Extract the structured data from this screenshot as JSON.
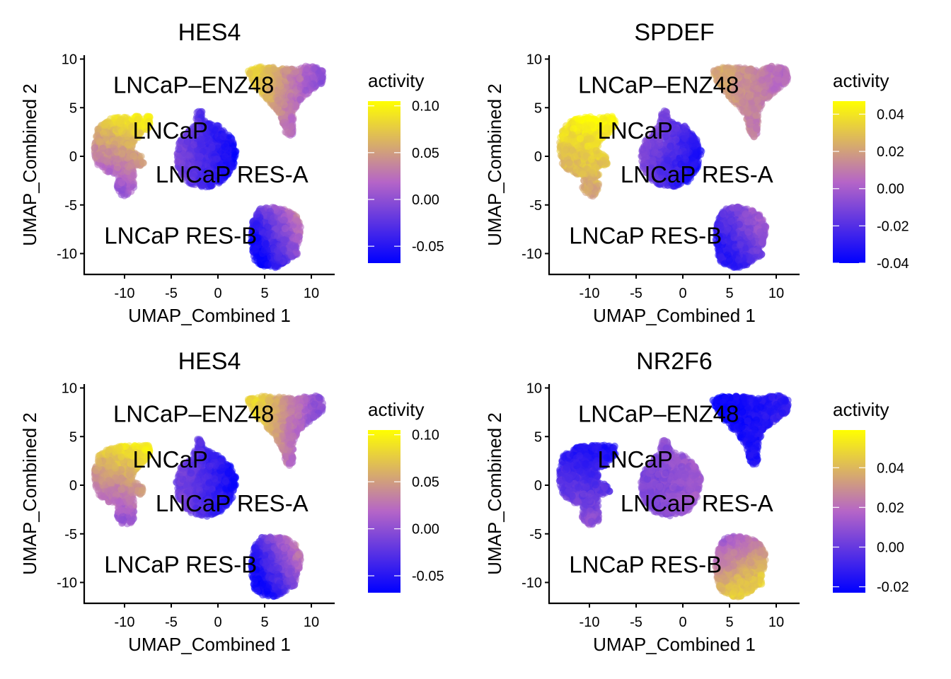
{
  "figure": {
    "layout": "2x2 grid of UMAP feature plots"
  },
  "chart_data": [
    {
      "type": "scatter",
      "title": "HES4",
      "xlabel": "UMAP_Combined 1",
      "ylabel": "UMAP_Combined 2",
      "xlim": [
        -14.5,
        12.5
      ],
      "ylim": [
        -12.3,
        10.2
      ],
      "xticks": [
        -10,
        -5,
        0,
        5,
        10
      ],
      "xtick_labels": [
        "-10",
        "-5",
        "0",
        "5",
        "10"
      ],
      "yticks": [
        10,
        5,
        0,
        -5,
        -10
      ],
      "ytick_labels": [
        "10",
        "5",
        "0",
        "-5",
        "-10"
      ],
      "grid": false,
      "legend": {
        "title": "activity",
        "placement": "right",
        "type": "colorbar",
        "range": [
          -0.068,
          0.105
        ],
        "ticks": [
          0.1,
          0.05,
          0.0,
          -0.05
        ],
        "tick_labels": [
          "0.10",
          "0.05",
          "0.00",
          "-0.05"
        ],
        "colors": [
          "#0000FF",
          "#B565C7",
          "#FFFF00"
        ]
      },
      "cluster_labels": [
        {
          "text": "LNCaP–ENZ48",
          "x": -2.6,
          "y": 7.4
        },
        {
          "text": "LNCaP",
          "x": -5.1,
          "y": 2.7
        },
        {
          "text": "LNCaP RES-A",
          "x": 1.5,
          "y": -1.8
        },
        {
          "text": "LNCaP RES-B",
          "x": -4.0,
          "y": -8.1
        }
      ],
      "clusters": [
        {
          "name": "LNCaP",
          "activity": {
            "mean": 0.035,
            "gradient": {
              "from": [
                -7.5,
                3.6
              ],
              "to": [
                -10.0,
                -3.5
              ],
              "start": 0.095,
              "end": 0.005
            }
          }
        },
        {
          "name": "LNCaP RES-A",
          "activity": {
            "mean": -0.04,
            "gradient": {
              "from": [
                -3.5,
                0
              ],
              "to": [
                1.5,
                0
              ],
              "start": -0.015,
              "end": -0.06
            }
          }
        },
        {
          "name": "LNCaP–ENZ48",
          "activity": {
            "mean": 0.03,
            "gradient": {
              "from": [
                4.5,
                8.8
              ],
              "to": [
                10.5,
                7.5
              ],
              "start": 0.08,
              "end": 0.0
            }
          }
        },
        {
          "name": "LNCaP RES-B",
          "activity": {
            "mean": -0.045,
            "gradient": {
              "from": [
                4.0,
                -8.5
              ],
              "to": [
                8.5,
                -6.0
              ],
              "start": -0.06,
              "end": 0.035
            }
          }
        }
      ]
    },
    {
      "type": "scatter",
      "title": "SPDEF",
      "xlabel": "UMAP_Combined 1",
      "ylabel": "UMAP_Combined 2",
      "xlim": [
        -14.5,
        12.5
      ],
      "ylim": [
        -12.3,
        10.2
      ],
      "xticks": [
        -10,
        -5,
        0,
        5,
        10
      ],
      "xtick_labels": [
        "-10",
        "-5",
        "0",
        "5",
        "10"
      ],
      "yticks": [
        10,
        5,
        0,
        -5,
        -10
      ],
      "ytick_labels": [
        "10",
        "5",
        "0",
        "-5",
        "-10"
      ],
      "grid": false,
      "legend": {
        "title": "activity",
        "placement": "right",
        "type": "colorbar",
        "range": [
          -0.04,
          0.047
        ],
        "ticks": [
          0.04,
          0.02,
          0.0,
          -0.02,
          -0.04
        ],
        "tick_labels": [
          "0.04",
          "0.02",
          "0.00",
          "-0.02",
          "-0.04"
        ],
        "colors": [
          "#0000FF",
          "#B565C7",
          "#FFFF00"
        ]
      },
      "cluster_labels": [
        {
          "text": "LNCaP–ENZ48",
          "x": -2.6,
          "y": 7.4
        },
        {
          "text": "LNCaP",
          "x": -5.1,
          "y": 2.7
        },
        {
          "text": "LNCaP RES-A",
          "x": 1.5,
          "y": -1.8
        },
        {
          "text": "LNCaP RES-B",
          "x": -4.0,
          "y": -8.1
        }
      ],
      "clusters": [
        {
          "name": "LNCaP",
          "activity": {
            "mean": 0.035,
            "gradient": {
              "from": [
                -8.0,
                3.5
              ],
              "to": [
                -10.0,
                -3.5
              ],
              "start": 0.045,
              "end": 0.022
            }
          }
        },
        {
          "name": "LNCaP RES-A",
          "activity": {
            "mean": -0.025,
            "gradient": {
              "from": [
                -3.5,
                1.0
              ],
              "to": [
                1.5,
                -1.0
              ],
              "start": -0.01,
              "end": -0.035
            }
          }
        },
        {
          "name": "LNCaP–ENZ48",
          "activity": {
            "mean": 0.015,
            "gradient": {
              "from": [
                4.5,
                8.5
              ],
              "to": [
                10.5,
                7.5
              ],
              "start": 0.022,
              "end": 0.005
            }
          }
        },
        {
          "name": "LNCaP RES-B",
          "activity": {
            "mean": -0.02,
            "gradient": {
              "from": [
                4.5,
                -9.5
              ],
              "to": [
                8.5,
                -6.5
              ],
              "start": -0.03,
              "end": 0.0
            }
          }
        }
      ]
    },
    {
      "type": "scatter",
      "title": "HES4",
      "xlabel": "UMAP_Combined 1",
      "ylabel": "UMAP_Combined 2",
      "xlim": [
        -14.5,
        12.5
      ],
      "ylim": [
        -12.3,
        10.2
      ],
      "xticks": [
        -10,
        -5,
        0,
        5,
        10
      ],
      "xtick_labels": [
        "-10",
        "-5",
        "0",
        "5",
        "10"
      ],
      "yticks": [
        10,
        5,
        0,
        -5,
        -10
      ],
      "ytick_labels": [
        "10",
        "5",
        "0",
        "-5",
        "-10"
      ],
      "grid": false,
      "legend": {
        "title": "activity",
        "placement": "right",
        "type": "colorbar",
        "range": [
          -0.068,
          0.105
        ],
        "ticks": [
          0.1,
          0.05,
          0.0,
          -0.05
        ],
        "tick_labels": [
          "0.10",
          "0.05",
          "0.00",
          "-0.05"
        ],
        "colors": [
          "#0000FF",
          "#B565C7",
          "#FFFF00"
        ]
      },
      "cluster_labels": [
        {
          "text": "LNCaP–ENZ48",
          "x": -2.6,
          "y": 7.4
        },
        {
          "text": "LNCaP",
          "x": -5.1,
          "y": 2.7
        },
        {
          "text": "LNCaP RES-A",
          "x": 1.5,
          "y": -1.8
        },
        {
          "text": "LNCaP RES-B",
          "x": -4.0,
          "y": -8.1
        }
      ],
      "clusters": [
        {
          "name": "LNCaP",
          "activity": {
            "mean": 0.035,
            "gradient": {
              "from": [
                -7.5,
                3.6
              ],
              "to": [
                -10.0,
                -3.5
              ],
              "start": 0.095,
              "end": 0.005
            }
          }
        },
        {
          "name": "LNCaP RES-A",
          "activity": {
            "mean": -0.04,
            "gradient": {
              "from": [
                -3.5,
                0
              ],
              "to": [
                1.5,
                0
              ],
              "start": -0.015,
              "end": -0.06
            }
          }
        },
        {
          "name": "LNCaP–ENZ48",
          "activity": {
            "mean": 0.03,
            "gradient": {
              "from": [
                4.5,
                8.8
              ],
              "to": [
                10.5,
                7.5
              ],
              "start": 0.08,
              "end": 0.0
            }
          }
        },
        {
          "name": "LNCaP RES-B",
          "activity": {
            "mean": -0.045,
            "gradient": {
              "from": [
                4.0,
                -8.5
              ],
              "to": [
                8.5,
                -6.0
              ],
              "start": -0.06,
              "end": 0.035
            }
          }
        }
      ]
    },
    {
      "type": "scatter",
      "title": "NR2F6",
      "xlabel": "UMAP_Combined 1",
      "ylabel": "UMAP_Combined 2",
      "xlim": [
        -14.5,
        12.5
      ],
      "ylim": [
        -12.3,
        10.2
      ],
      "xticks": [
        -10,
        -5,
        0,
        5,
        10
      ],
      "xtick_labels": [
        "-10",
        "-5",
        "0",
        "5",
        "10"
      ],
      "yticks": [
        10,
        5,
        0,
        -5,
        -10
      ],
      "ytick_labels": [
        "10",
        "5",
        "0",
        "-5",
        "-10"
      ],
      "grid": false,
      "legend": {
        "title": "activity",
        "placement": "right",
        "type": "colorbar",
        "range": [
          -0.023,
          0.059
        ],
        "ticks": [
          0.04,
          0.02,
          0.0,
          -0.02
        ],
        "tick_labels": [
          "0.04",
          "0.02",
          "0.00",
          "-0.02"
        ],
        "colors": [
          "#0000FF",
          "#B565C7",
          "#FFFF00"
        ]
      },
      "cluster_labels": [
        {
          "text": "LNCaP–ENZ48",
          "x": -2.6,
          "y": 7.4
        },
        {
          "text": "LNCaP",
          "x": -5.1,
          "y": 2.7
        },
        {
          "text": "LNCaP RES-A",
          "x": 1.5,
          "y": -1.8
        },
        {
          "text": "LNCaP RES-B",
          "x": -4.0,
          "y": -8.1
        }
      ],
      "clusters": [
        {
          "name": "LNCaP",
          "activity": {
            "mean": -0.01,
            "gradient": {
              "from": [
                -9.0,
                3.5
              ],
              "to": [
                -10.0,
                -3.5
              ],
              "start": -0.016,
              "end": 0.008
            }
          }
        },
        {
          "name": "LNCaP RES-A",
          "activity": {
            "mean": 0.008,
            "gradient": {
              "from": [
                -3.5,
                0
              ],
              "to": [
                1.5,
                0
              ],
              "start": 0.005,
              "end": 0.014
            }
          }
        },
        {
          "name": "LNCaP–ENZ48",
          "activity": {
            "mean": -0.02,
            "gradient": {
              "from": [
                4.5,
                8.5
              ],
              "to": [
                10.5,
                8.0
              ],
              "start": -0.022,
              "end": -0.012
            }
          }
        },
        {
          "name": "LNCaP RES-B",
          "activity": {
            "mean": 0.03,
            "gradient": {
              "from": [
                4.0,
                -6.0
              ],
              "to": [
                6.5,
                -10.5
              ],
              "start": 0.015,
              "end": 0.045
            }
          }
        }
      ]
    }
  ],
  "cluster_shapes": {
    "LNCaP": [
      [
        -13.2,
        1.5
      ],
      [
        -12.8,
        3.0
      ],
      [
        -11.5,
        3.9
      ],
      [
        -9.5,
        4.1
      ],
      [
        -7.3,
        4.1
      ],
      [
        -7.2,
        3.2
      ],
      [
        -8.0,
        2.3
      ],
      [
        -9.0,
        1.5
      ],
      [
        -9.2,
        0.5
      ],
      [
        -8.2,
        0.0
      ],
      [
        -7.8,
        -0.6
      ],
      [
        -8.4,
        -1.0
      ],
      [
        -9.0,
        -1.0
      ],
      [
        -9.0,
        -3.6
      ],
      [
        -9.6,
        -4.1
      ],
      [
        -10.3,
        -4.0
      ],
      [
        -10.8,
        -3.2
      ],
      [
        -10.6,
        -1.9
      ],
      [
        -11.6,
        -1.8
      ],
      [
        -12.8,
        -1.0
      ],
      [
        -13.2,
        0.2
      ]
    ],
    "LNCaP RES-A": [
      [
        -2.2,
        4.8
      ],
      [
        -1.7,
        4.6
      ],
      [
        -1.4,
        3.6
      ],
      [
        0.2,
        3.1
      ],
      [
        1.5,
        1.8
      ],
      [
        2.0,
        0.5
      ],
      [
        1.6,
        -1.2
      ],
      [
        0.6,
        -2.6
      ],
      [
        -1.2,
        -3.2
      ],
      [
        -3.0,
        -2.8
      ],
      [
        -4.2,
        -1.6
      ],
      [
        -4.5,
        0.2
      ],
      [
        -4.0,
        1.8
      ],
      [
        -2.6,
        3.2
      ],
      [
        -2.3,
        4.0
      ]
    ],
    "LNCaP–ENZ48": [
      [
        3.2,
        8.8
      ],
      [
        4.5,
        9.2
      ],
      [
        6.5,
        9.1
      ],
      [
        8.5,
        8.9
      ],
      [
        9.5,
        9.3
      ],
      [
        10.6,
        9.2
      ],
      [
        11.3,
        8.7
      ],
      [
        11.2,
        7.6
      ],
      [
        10.3,
        7.0
      ],
      [
        9.6,
        6.4
      ],
      [
        8.6,
        5.6
      ],
      [
        8.1,
        4.5
      ],
      [
        8.0,
        2.3
      ],
      [
        7.6,
        2.0
      ],
      [
        7.2,
        2.5
      ],
      [
        6.8,
        4.0
      ],
      [
        5.8,
        5.3
      ],
      [
        4.7,
        6.4
      ],
      [
        3.8,
        7.5
      ],
      [
        3.4,
        8.2
      ]
    ],
    "LNCaP RES-B": [
      [
        3.8,
        -6.5
      ],
      [
        4.5,
        -5.4
      ],
      [
        5.8,
        -5.2
      ],
      [
        7.3,
        -5.5
      ],
      [
        8.5,
        -6.2
      ],
      [
        8.9,
        -7.3
      ],
      [
        8.7,
        -8.6
      ],
      [
        8.3,
        -9.7
      ],
      [
        8.6,
        -10.1
      ],
      [
        7.7,
        -10.5
      ],
      [
        7.0,
        -11.1
      ],
      [
        6.0,
        -11.5
      ],
      [
        4.8,
        -11.3
      ],
      [
        3.9,
        -10.7
      ],
      [
        3.7,
        -9.6
      ],
      [
        3.5,
        -8.5
      ],
      [
        3.6,
        -7.3
      ]
    ]
  }
}
